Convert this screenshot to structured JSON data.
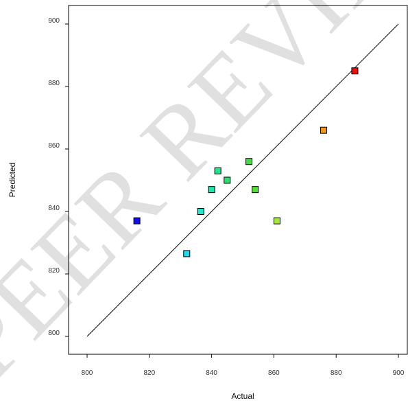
{
  "watermark": "PEER REVIEW",
  "chart_data": {
    "type": "scatter",
    "title": "",
    "xlabel": "Actual",
    "ylabel": "Predicted",
    "xlim": [
      800,
      900
    ],
    "ylim": [
      800,
      900
    ],
    "xticks": [
      800,
      820,
      840,
      860,
      880,
      900
    ],
    "yticks": [
      800,
      820,
      840,
      860,
      880,
      900
    ],
    "reference_line": {
      "from": [
        800,
        800
      ],
      "to": [
        900,
        900
      ],
      "color": "#000000"
    },
    "points": [
      {
        "x": 816,
        "y": 837,
        "color": "#1010ee"
      },
      {
        "x": 832,
        "y": 826.5,
        "color": "#22d8f0"
      },
      {
        "x": 836.5,
        "y": 840,
        "color": "#1ee8c8"
      },
      {
        "x": 840,
        "y": 847,
        "color": "#1ee8a8"
      },
      {
        "x": 842,
        "y": 853,
        "color": "#22e488"
      },
      {
        "x": 845,
        "y": 850,
        "color": "#2ae070"
      },
      {
        "x": 852,
        "y": 856,
        "color": "#40dc40"
      },
      {
        "x": 854,
        "y": 847,
        "color": "#50e030"
      },
      {
        "x": 861,
        "y": 837,
        "color": "#a0ec30"
      },
      {
        "x": 876,
        "y": 866,
        "color": "#f09a20"
      },
      {
        "x": 886,
        "y": 885,
        "color": "#ee1010"
      }
    ]
  }
}
